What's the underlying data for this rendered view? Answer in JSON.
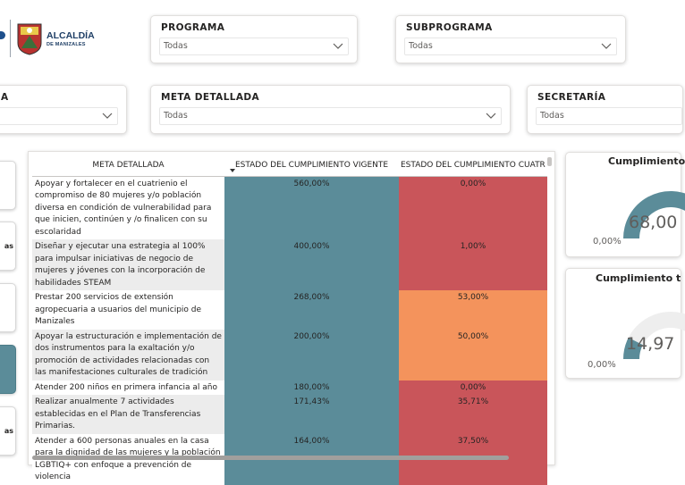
{
  "logo": {
    "line1": "ALCALDÍA",
    "line2": "DE MANIZALES"
  },
  "slicers": {
    "programa": {
      "title": "PROGRAMA",
      "value": "Todas"
    },
    "subprograma": {
      "title": "SUBPROGRAMA",
      "value": "Todas"
    },
    "left_partial": {
      "title": "A",
      "value": ""
    },
    "meta_detallada": {
      "title": "META DETALLADA",
      "value": "Todas"
    },
    "secretaria": {
      "title": "SECRETARÍA",
      "value": "Todas"
    }
  },
  "side_buttons": [
    "",
    "as",
    "",
    "",
    "as"
  ],
  "table": {
    "headers": [
      "META DETALLADA",
      "ESTADO DEL CUMPLIMIENTO VIGENTE",
      "ESTADO DEL CUMPLIMIENTO CUATR"
    ],
    "rows": [
      {
        "meta": "Apoyar y fortalecer en el cuatrienio el compromiso de 80 mujeres y/o población diversa en condición de vulnerabilidad para que inicien, continúen y /o finalicen con su escolaridad",
        "vigente": "560,00%",
        "cuatrienio": "0,00%",
        "color": "#c9555a"
      },
      {
        "meta": "Diseñar y ejecutar una estrategia al 100% para impulsar iniciativas de negocio de mujeres y jóvenes con la incorporación de habilidades STEAM",
        "vigente": "400,00%",
        "cuatrienio": "1,00%",
        "color": "#c9555a"
      },
      {
        "meta": "Prestar 200 servicios de extensión agropecuaria a usuarios del municipio de Manizales",
        "vigente": "268,00%",
        "cuatrienio": "53,00%",
        "color": "#f4935c"
      },
      {
        "meta": "Apoyar la estructuración e implementación de dos instrumentos para la exaltación y/o promoción de actividades relacionadas con las manifestaciones culturales de tradición",
        "vigente": "200,00%",
        "cuatrienio": "50,00%",
        "color": "#f4935c"
      },
      {
        "meta": "Atender 200 niños en primera infancia al año",
        "vigente": "180,00%",
        "cuatrienio": "0,00%",
        "color": "#c9555a"
      },
      {
        "meta": "Realizar anualmente 7 actividades establecidas en el Plan de Transferencias Primarias.",
        "vigente": "171,43%",
        "cuatrienio": "35,71%",
        "color": "#c9555a"
      },
      {
        "meta": "Atender a 600 personas anuales en la casa para la dignidad de las mujeres y la población LGBTIQ+ con enfoque a prevención de violencia",
        "vigente": "164,00%",
        "cuatrienio": "37,50%",
        "color": "#c9555a"
      }
    ],
    "vigente_color": "#5b8c99"
  },
  "gauges": [
    {
      "title": "Cumplimiento",
      "value": "68,00",
      "min": "0,00%",
      "fraction": 0.68
    },
    {
      "title": "Cumplimiento t",
      "value": "14,97",
      "min": "0,00%",
      "fraction": 0.1497
    }
  ],
  "colors": {
    "gauge_fill": "#5b8c99",
    "gauge_track": "#eeeeee"
  }
}
